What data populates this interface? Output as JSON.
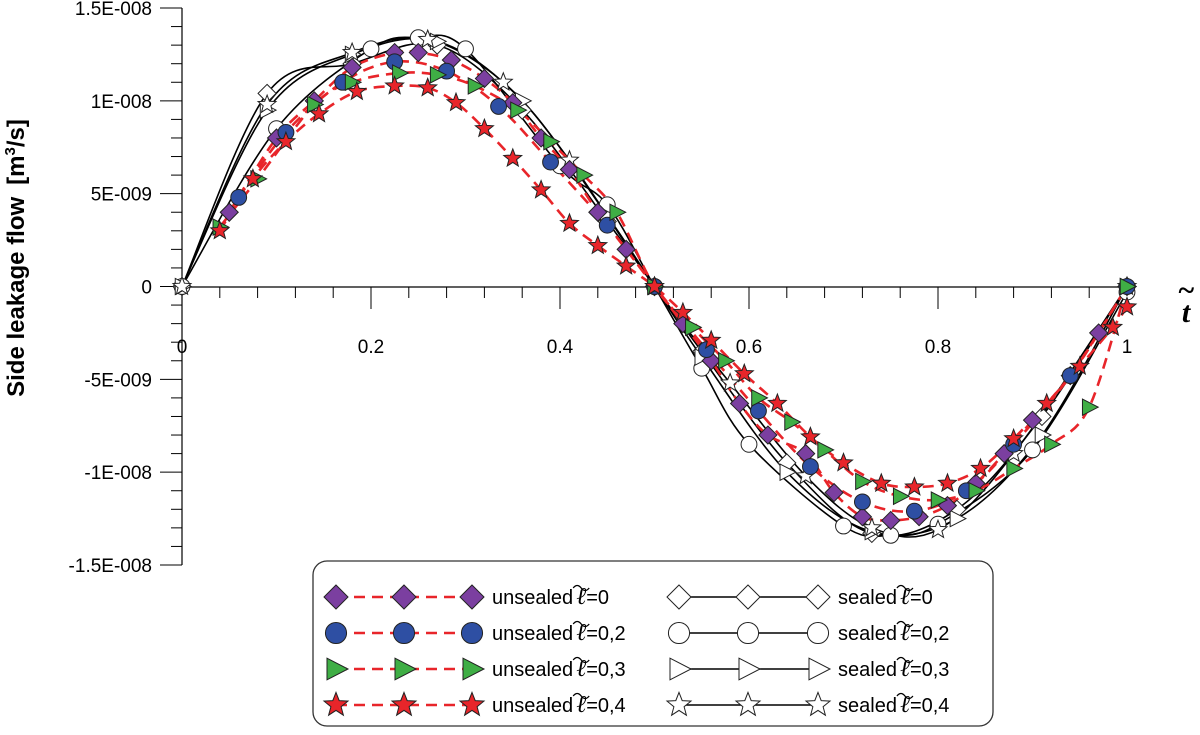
{
  "chart_data": {
    "type": "line",
    "xlabel": "t",
    "xlabel_accent": "~",
    "ylabel": "Side leakage flow",
    "ylabel_unit_prefix": "[m",
    "ylabel_unit_sup": "3",
    "ylabel_unit_suffix": "/s]",
    "xlim": [
      0,
      1
    ],
    "ylim": [
      -1.5e-08,
      1.5e-08
    ],
    "x_ticks": [
      {
        "v": 0,
        "label": "0"
      },
      {
        "v": 0.2,
        "label": "0.2"
      },
      {
        "v": 0.4,
        "label": "0.4"
      },
      {
        "v": 0.6,
        "label": "0.6"
      },
      {
        "v": 0.8,
        "label": "0.8"
      },
      {
        "v": 1,
        "label": "1"
      }
    ],
    "y_ticks": [
      {
        "v": 1.5e-08,
        "label": "1.5E-008"
      },
      {
        "v": 1e-08,
        "label": "1E-008"
      },
      {
        "v": 5e-09,
        "label": "5E-009"
      },
      {
        "v": 0,
        "label": "0"
      },
      {
        "v": -5e-09,
        "label": "-5E-009"
      },
      {
        "v": -1e-08,
        "label": "-1E-008"
      },
      {
        "v": -1.5e-08,
        "label": "-1.5E-008"
      }
    ],
    "legend_placement": "bottom-center",
    "grid": false,
    "series": [
      {
        "name": "unsealed =0",
        "name_prefix": "unsealed",
        "name_suffix": "=0",
        "marker": "diamond",
        "fill": "#7b3fa0",
        "line": "dashed",
        "line_color": "#e8252a",
        "x": [
          0.05,
          0.1,
          0.14,
          0.18,
          0.225,
          0.25,
          0.285,
          0.32,
          0.35,
          0.38,
          0.41,
          0.44,
          0.47,
          0.5,
          0.53,
          0.56,
          0.59,
          0.62,
          0.66,
          0.69,
          0.72,
          0.75,
          0.78,
          0.81,
          0.84,
          0.87,
          0.9,
          0.94,
          0.97,
          1.0
        ],
        "y": [
          4e-09,
          8e-09,
          1e-08,
          1.18e-08,
          1.26e-08,
          1.26e-08,
          1.22e-08,
          1.12e-08,
          9.9e-09,
          8e-09,
          6.3e-09,
          4e-09,
          2e-09,
          0,
          -2e-09,
          -4e-09,
          -6.3e-09,
          -8e-09,
          -9e-09,
          -1.11e-08,
          -1.24e-08,
          -1.26e-08,
          -1.24e-08,
          -1.18e-08,
          -1.06e-08,
          -9e-09,
          -7.2e-09,
          -4.8e-09,
          -2.5e-09,
          0
        ]
      },
      {
        "name": "unsealed =0,2",
        "name_prefix": "unsealed",
        "name_suffix": "=0,2",
        "marker": "circle",
        "fill": "#2e4fa3",
        "line": "dashed",
        "line_color": "#e8252a",
        "x": [
          0.06,
          0.11,
          0.17,
          0.225,
          0.28,
          0.335,
          0.39,
          0.45,
          0.5,
          0.555,
          0.61,
          0.665,
          0.72,
          0.775,
          0.83,
          0.88,
          0.94,
          1.0
        ],
        "y": [
          4.8e-09,
          8.3e-09,
          1.1e-08,
          1.21e-08,
          1.16e-08,
          9.7e-09,
          6.7e-09,
          3.3e-09,
          0,
          -3.4e-09,
          -6.7e-09,
          -9.7e-09,
          -1.16e-08,
          -1.21e-08,
          -1.1e-08,
          -8.5e-09,
          -4.8e-09,
          0
        ]
      },
      {
        "name": "unsealed =0,3",
        "name_prefix": "unsealed",
        "name_suffix": "=0,3",
        "marker": "triangle",
        "fill": "#3fae45",
        "line": "dashed",
        "line_color": "#e8252a",
        "x": [
          0.04,
          0.08,
          0.14,
          0.18,
          0.23,
          0.27,
          0.31,
          0.355,
          0.39,
          0.425,
          0.46,
          0.5,
          0.54,
          0.575,
          0.61,
          0.645,
          0.68,
          0.72,
          0.76,
          0.8,
          0.84,
          0.88,
          0.92,
          0.96,
          1.0
        ],
        "y": [
          3.2e-09,
          5.8e-09,
          9.8e-09,
          1.1e-08,
          1.15e-08,
          1.14e-08,
          1.08e-08,
          9.5e-09,
          7.8e-09,
          6e-09,
          4e-09,
          0,
          -2.2e-09,
          -4e-09,
          -6e-09,
          -7.3e-09,
          -8.8e-09,
          -1.05e-08,
          -1.13e-08,
          -1.15e-08,
          -1.1e-08,
          -9.8e-09,
          -8.5e-09,
          -6.5e-09,
          0
        ]
      },
      {
        "name": "unsealed =0,4",
        "name_prefix": "unsealed",
        "name_suffix": "=0,4",
        "marker": "star",
        "fill": "#e8252a",
        "line": "dashed",
        "line_color": "#e8252a",
        "x": [
          0.04,
          0.075,
          0.11,
          0.145,
          0.185,
          0.225,
          0.26,
          0.29,
          0.32,
          0.35,
          0.38,
          0.41,
          0.44,
          0.47,
          0.5,
          0.53,
          0.56,
          0.595,
          0.63,
          0.665,
          0.7,
          0.74,
          0.775,
          0.81,
          0.845,
          0.88,
          0.915,
          0.95,
          0.985,
          1.0
        ],
        "y": [
          3e-09,
          5.8e-09,
          7.8e-09,
          9.3e-09,
          1.05e-08,
          1.08e-08,
          1.07e-08,
          9.9e-09,
          8.5e-09,
          6.9e-09,
          5.2e-09,
          3.4e-09,
          2.2e-09,
          1.1e-09,
          0,
          -1.4e-09,
          -2.9e-09,
          -4.7e-09,
          -6.3e-09,
          -8.1e-09,
          -9.5e-09,
          -1.06e-08,
          -1.08e-08,
          -1.06e-08,
          -9.8e-09,
          -8.2e-09,
          -6.3e-09,
          -4.3e-09,
          -2.2e-09,
          -1.1e-09
        ]
      },
      {
        "name": "sealed =0",
        "name_prefix": "sealed",
        "name_suffix": "=0",
        "marker": "diamond",
        "fill": "#ffffff",
        "line": "solid",
        "line_color": "#000000",
        "x": [
          0,
          0.09,
          0.18,
          0.27,
          0.36,
          0.45,
          0.5,
          0.55,
          0.64,
          0.73,
          0.82,
          0.91,
          1.0
        ],
        "y": [
          0,
          1.04e-08,
          1.2e-08,
          1.3e-08,
          9.5e-09,
          3.5e-09,
          0,
          -3.5e-09,
          -9.5e-09,
          -1.33e-08,
          -1.2e-08,
          -7e-09,
          0
        ]
      },
      {
        "name": "sealed =0,2",
        "name_prefix": "sealed",
        "name_suffix": "=0,2",
        "marker": "circle",
        "fill": "#ffffff",
        "line": "solid",
        "line_color": "#000000",
        "x": [
          0,
          0.1,
          0.2,
          0.25,
          0.3,
          0.4,
          0.45,
          0.5,
          0.55,
          0.6,
          0.7,
          0.75,
          0.8,
          0.9,
          1.0
        ],
        "y": [
          0,
          8.5e-09,
          1.28e-08,
          1.34e-08,
          1.28e-08,
          6.5e-09,
          4.4e-09,
          0,
          -4.4e-09,
          -8.5e-09,
          -1.29e-08,
          -1.34e-08,
          -1.28e-08,
          -8.8e-09,
          -3e-10
        ]
      },
      {
        "name": "sealed =0,3",
        "name_prefix": "sealed",
        "name_suffix": "=0,3",
        "marker": "triangle",
        "fill": "#ffffff",
        "line": "solid",
        "line_color": "#000000",
        "x": [
          0,
          0.09,
          0.18,
          0.27,
          0.36,
          0.45,
          0.5,
          0.55,
          0.64,
          0.73,
          0.82,
          0.91,
          1.0
        ],
        "y": [
          0,
          9.5e-09,
          1.25e-08,
          1.32e-08,
          1e-08,
          3.8e-09,
          0,
          -3.8e-09,
          -1e-08,
          -1.32e-08,
          -1.25e-08,
          -8e-09,
          0
        ]
      },
      {
        "name": "sealed =0,4",
        "name_prefix": "sealed",
        "name_suffix": "=0,4",
        "marker": "star",
        "fill": "#ffffff",
        "line": "solid",
        "line_color": "#000000",
        "x": [
          0,
          0.09,
          0.18,
          0.26,
          0.34,
          0.41,
          0.5,
          0.58,
          0.66,
          0.73,
          0.8,
          0.88,
          1.0
        ],
        "y": [
          0,
          9.8e-09,
          1.26e-08,
          1.33e-08,
          1.1e-08,
          6.8e-09,
          0,
          -5.2e-09,
          -1.02e-08,
          -1.3e-08,
          -1.31e-08,
          -9e-09,
          0
        ]
      }
    ]
  }
}
